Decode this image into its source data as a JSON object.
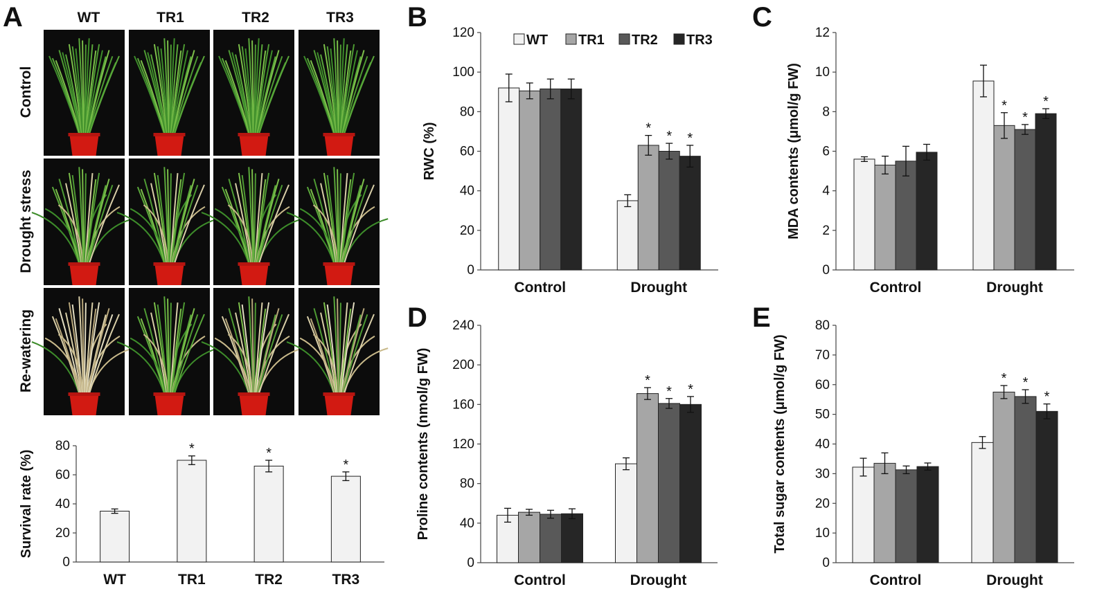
{
  "panel_a": {
    "letter": "A",
    "genotypes": [
      "WT",
      "TR1",
      "TR2",
      "TR3"
    ],
    "conditions": [
      "Control",
      "Drought stress",
      "Re-watering"
    ]
  },
  "colors": {
    "WT": "#f2f2f2",
    "TR1": "#a6a6a6",
    "TR2": "#595959",
    "TR3": "#262626",
    "single": "#f2f2f2"
  },
  "chart_data": [
    {
      "id": "survival",
      "type": "bar",
      "categories": [
        "WT",
        "TR1",
        "TR2",
        "TR3"
      ],
      "values": [
        35,
        70,
        66,
        59
      ],
      "errors": [
        1.5,
        3,
        4,
        3
      ],
      "significance": [
        "",
        "*",
        "*",
        "*"
      ],
      "title": "",
      "xlabel": "",
      "ylabel": "Survival rate (%)",
      "ylim": [
        0,
        80
      ],
      "yticks": [
        "0",
        "20",
        "40",
        "60",
        "80"
      ]
    },
    {
      "id": "B",
      "letter": "B",
      "type": "bar",
      "categories": [
        "Control",
        "Drought"
      ],
      "series": [
        {
          "name": "WT",
          "values": [
            92,
            35
          ],
          "errors": [
            7,
            3
          ],
          "significance": [
            "",
            ""
          ]
        },
        {
          "name": "TR1",
          "values": [
            90.5,
            63
          ],
          "errors": [
            4,
            5
          ],
          "significance": [
            "",
            "*"
          ]
        },
        {
          "name": "TR2",
          "values": [
            91.5,
            60
          ],
          "errors": [
            5,
            4
          ],
          "significance": [
            "",
            "*"
          ]
        },
        {
          "name": "TR3",
          "values": [
            91.5,
            57.5
          ],
          "errors": [
            5,
            5.5
          ],
          "significance": [
            "",
            "*"
          ]
        }
      ],
      "legend": [
        "WT",
        "TR1",
        "TR2",
        "TR3"
      ],
      "ylabel": "RWC (%)",
      "ylim": [
        0,
        120
      ],
      "yticks": [
        "0",
        "20",
        "40",
        "60",
        "80",
        "100",
        "120"
      ]
    },
    {
      "id": "C",
      "letter": "C",
      "type": "bar",
      "categories": [
        "Control",
        "Drought"
      ],
      "series": [
        {
          "name": "WT",
          "values": [
            5.6,
            9.55
          ],
          "errors": [
            0.12,
            0.8
          ],
          "significance": [
            "",
            ""
          ]
        },
        {
          "name": "TR1",
          "values": [
            5.3,
            7.3
          ],
          "errors": [
            0.45,
            0.65
          ],
          "significance": [
            "",
            "*"
          ]
        },
        {
          "name": "TR2",
          "values": [
            5.5,
            7.1
          ],
          "errors": [
            0.75,
            0.25
          ],
          "significance": [
            "",
            "*"
          ]
        },
        {
          "name": "TR3",
          "values": [
            5.95,
            7.9
          ],
          "errors": [
            0.4,
            0.25
          ],
          "significance": [
            "",
            "*"
          ]
        }
      ],
      "ylabel": "MDA contents (μmol/g FW)",
      "ylim": [
        0,
        12
      ],
      "yticks": [
        "0",
        "2",
        "4",
        "6",
        "8",
        "10",
        "12"
      ]
    },
    {
      "id": "D",
      "letter": "D",
      "type": "bar",
      "categories": [
        "Control",
        "Drought"
      ],
      "series": [
        {
          "name": "WT",
          "values": [
            48,
            100
          ],
          "errors": [
            7,
            6
          ],
          "significance": [
            "",
            ""
          ]
        },
        {
          "name": "TR1",
          "values": [
            51,
            171
          ],
          "errors": [
            3,
            6
          ],
          "significance": [
            "",
            "*"
          ]
        },
        {
          "name": "TR2",
          "values": [
            49,
            161
          ],
          "errors": [
            4,
            5
          ],
          "significance": [
            "",
            "*"
          ]
        },
        {
          "name": "TR3",
          "values": [
            49.5,
            160
          ],
          "errors": [
            5,
            8
          ],
          "significance": [
            "",
            "*"
          ]
        }
      ],
      "ylabel": "Proline contents (nmol/g FW)",
      "ylim": [
        0,
        240
      ],
      "yticks": [
        "0",
        "40",
        "80",
        "120",
        "160",
        "200",
        "240"
      ]
    },
    {
      "id": "E",
      "letter": "E",
      "type": "bar",
      "categories": [
        "Control",
        "Drought"
      ],
      "series": [
        {
          "name": "WT",
          "values": [
            32.2,
            40.5
          ],
          "errors": [
            3,
            2
          ],
          "significance": [
            "",
            ""
          ]
        },
        {
          "name": "TR1",
          "values": [
            33.5,
            57.5
          ],
          "errors": [
            3.5,
            2.2
          ],
          "significance": [
            "",
            "*"
          ]
        },
        {
          "name": "TR2",
          "values": [
            31.3,
            56
          ],
          "errors": [
            1.3,
            2.3
          ],
          "significance": [
            "",
            "*"
          ]
        },
        {
          "name": "TR3",
          "values": [
            32.4,
            51
          ],
          "errors": [
            1.2,
            2.5
          ],
          "significance": [
            "",
            "*"
          ]
        }
      ],
      "ylabel": "Total sugar contents (μmol/g FW)",
      "ylim": [
        0,
        80
      ],
      "yticks": [
        "0",
        "10",
        "20",
        "30",
        "40",
        "50",
        "60",
        "70",
        "80"
      ]
    }
  ]
}
